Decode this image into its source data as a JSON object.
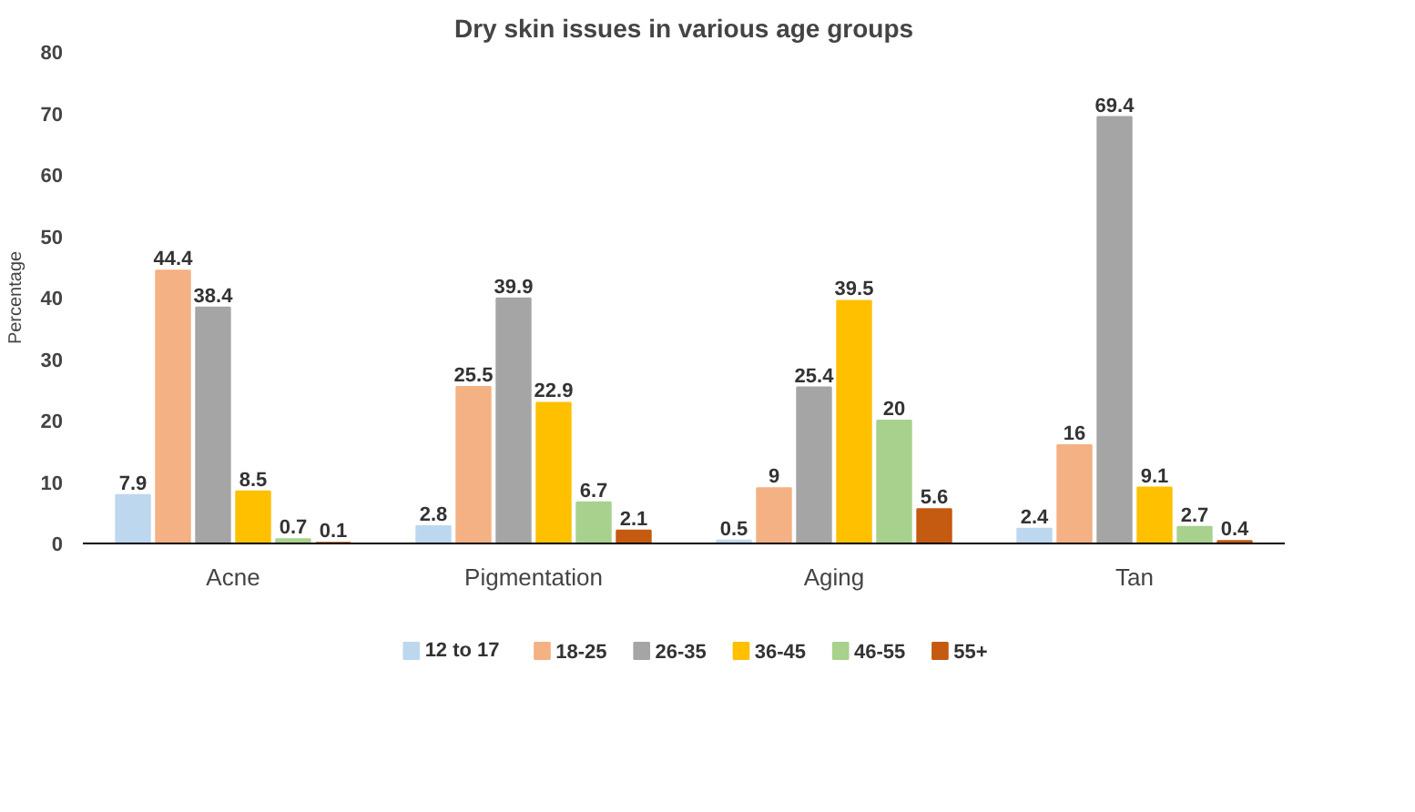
{
  "chart_data": {
    "type": "bar",
    "title": "Dry skin issues in various age groups",
    "ylabel": "Percentage",
    "categories": [
      "Acne",
      "Pigmentation",
      "Aging",
      "Tan"
    ],
    "series": [
      {
        "name": "12 to 17",
        "color": "#bdd7ee",
        "values": [
          7.9,
          2.8,
          0.5,
          2.4
        ]
      },
      {
        "name": "18-25",
        "color": "#f4b183",
        "values": [
          44.4,
          25.5,
          9,
          16
        ]
      },
      {
        "name": "26-35",
        "color": "#a5a5a5",
        "values": [
          38.4,
          39.9,
          25.4,
          69.4
        ]
      },
      {
        "name": "36-45",
        "color": "#ffc000",
        "values": [
          8.5,
          22.9,
          39.5,
          9.1
        ]
      },
      {
        "name": "46-55",
        "color": "#a9d18e",
        "values": [
          0.7,
          6.7,
          20,
          2.7
        ]
      },
      {
        "name": "55+",
        "color": "#c55a11",
        "values": [
          0.1,
          2.1,
          5.6,
          0.4
        ]
      }
    ],
    "ylim": [
      0,
      80
    ],
    "yticks": [
      0,
      10,
      20,
      30,
      40,
      50,
      60,
      70,
      80
    ],
    "grid": false,
    "legend": "bottom",
    "data_labels": true
  }
}
